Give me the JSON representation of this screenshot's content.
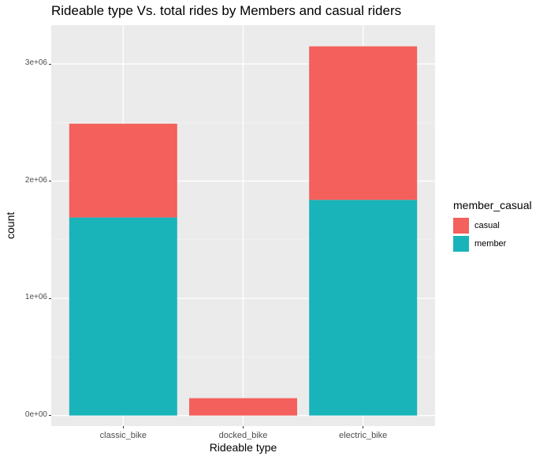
{
  "chart_data": {
    "type": "bar",
    "stacked": true,
    "title": "Rideable type Vs. total rides by Members and casual riders",
    "xlabel": "Rideable type",
    "ylabel": "count",
    "categories": [
      "classic_bike",
      "docked_bike",
      "electric_bike"
    ],
    "series": [
      {
        "name": "member",
        "color": "#19b4b9",
        "values": [
          1690000,
          0,
          1840000
        ]
      },
      {
        "name": "casual",
        "color": "#f4605c",
        "values": [
          800000,
          148000,
          1310000
        ]
      }
    ],
    "stack_order_bottom_to_top": [
      "member",
      "casual"
    ],
    "ylim": [
      -90000,
      3330000
    ],
    "y_ticks": [
      0,
      1000000,
      2000000,
      3000000
    ],
    "y_tick_labels": [
      "0e+00",
      "1e+06",
      "2e+06",
      "3e+06"
    ],
    "grid": true,
    "legend": {
      "title": "member_casual",
      "entries": [
        "casual",
        "member"
      ],
      "placement": "right"
    },
    "panel_background": "#ebebeb"
  }
}
